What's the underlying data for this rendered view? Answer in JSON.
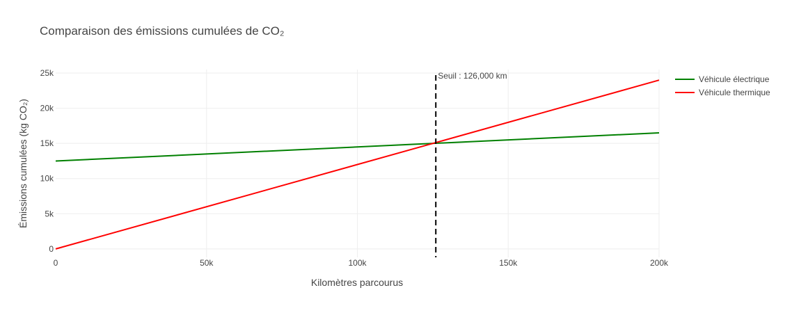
{
  "chart_data": {
    "type": "line",
    "title": "Comparaison des émissions cumulées de CO₂",
    "xlabel": "Kilomètres parcourus",
    "ylabel": "Émissions cumulées (kg CO₂)",
    "xlim": [
      0,
      200000
    ],
    "ylim": [
      -1200,
      25500
    ],
    "x_ticks": [
      0,
      50000,
      100000,
      150000,
      200000
    ],
    "x_tick_labels": [
      "0",
      "50k",
      "100k",
      "150k",
      "200k"
    ],
    "y_ticks": [
      0,
      5000,
      10000,
      15000,
      20000,
      25000
    ],
    "y_tick_labels": [
      "0",
      "5k",
      "10k",
      "15k",
      "20k",
      "25k"
    ],
    "grid": true,
    "legend_position": "top-right",
    "series": [
      {
        "name": "Véhicule électrique",
        "color": "#008000",
        "x": [
          0,
          200000
        ],
        "y": [
          12500,
          16500
        ]
      },
      {
        "name": "Véhicule thermique",
        "color": "#ff0000",
        "x": [
          0,
          200000
        ],
        "y": [
          0,
          24000
        ]
      }
    ],
    "threshold": {
      "x": 126000,
      "label": "Seuil : 126,000 km",
      "color": "#000000"
    }
  }
}
